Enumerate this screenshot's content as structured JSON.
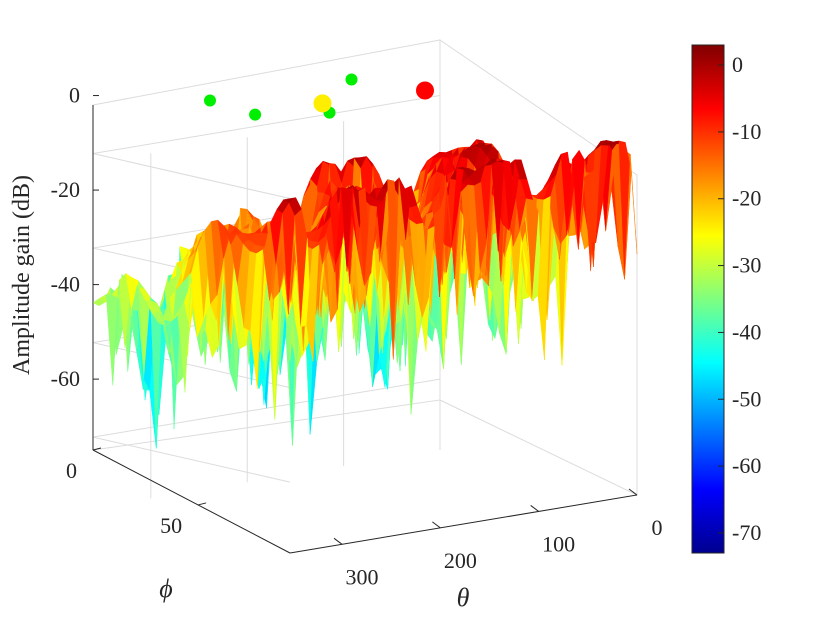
{
  "chart_data": {
    "type": "surface",
    "title": "",
    "zlabel": "Amplitude gain (dB)",
    "xlabel": "θ",
    "ylabel": "ϕ",
    "zlim": [
      -75,
      3
    ],
    "theta_ticks": [
      {
        "value": 0,
        "label": "0"
      },
      {
        "value": 100,
        "label": "100"
      },
      {
        "value": 200,
        "label": "200"
      },
      {
        "value": 300,
        "label": "300"
      }
    ],
    "phi_ticks": [
      {
        "value": 0,
        "label": "0"
      },
      {
        "value": 50,
        "label": "50"
      }
    ],
    "z_ticks": [
      {
        "value": 0,
        "label": "0"
      },
      {
        "value": -20,
        "label": "-20"
      },
      {
        "value": -40,
        "label": "-40"
      },
      {
        "value": -60,
        "label": "-60"
      }
    ],
    "colorbar": {
      "colormap": "jet",
      "range": [
        -73,
        3
      ],
      "ticks": [
        {
          "value": 0,
          "label": "0"
        },
        {
          "value": -10,
          "label": "-10"
        },
        {
          "value": -20,
          "label": "-20"
        },
        {
          "value": -30,
          "label": "-30"
        },
        {
          "value": -40,
          "label": "-40"
        },
        {
          "value": -50,
          "label": "-50"
        },
        {
          "value": -60,
          "label": "-60"
        },
        {
          "value": -70,
          "label": "-70"
        }
      ]
    },
    "peaks": [
      {
        "theta": 100,
        "phi": 35,
        "gain": -2
      },
      {
        "theta": 205,
        "phi": 40,
        "gain": -5
      },
      {
        "theta": 290,
        "phi": 50,
        "gain": -12
      }
    ],
    "markers": [
      {
        "color": "#00ee00",
        "size": "small"
      },
      {
        "color": "#00ee00",
        "size": "small"
      },
      {
        "color": "#00ee00",
        "size": "small"
      },
      {
        "color": "#00ee00",
        "size": "small"
      },
      {
        "color": "#ffee00",
        "size": "large"
      },
      {
        "color": "#ff0000",
        "size": "large"
      }
    ]
  }
}
